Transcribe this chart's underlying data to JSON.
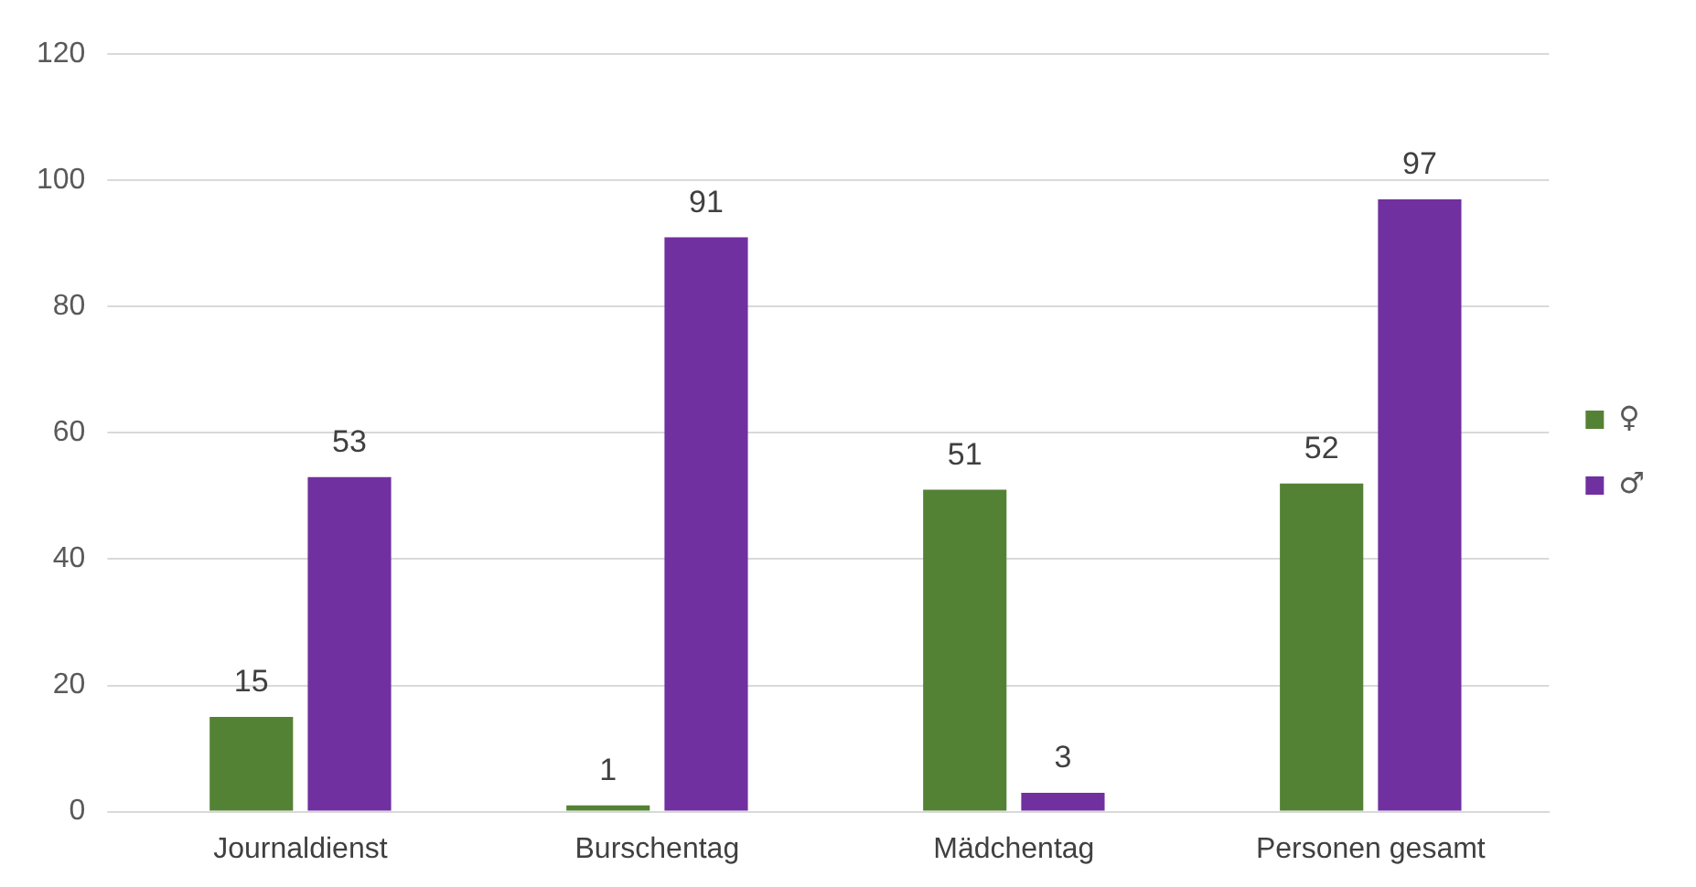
{
  "chart_data": {
    "type": "bar",
    "categories": [
      "Journaldienst",
      "Burschentag",
      "Mädchentag",
      "Personen gesamt"
    ],
    "series": [
      {
        "name": "♀",
        "color": "#548235",
        "values": [
          15,
          1,
          51,
          52
        ]
      },
      {
        "name": "♂",
        "color": "#7030a0",
        "values": [
          53,
          91,
          3,
          97
        ]
      }
    ],
    "ylim": [
      0,
      120
    ],
    "yticks": [
      0,
      20,
      40,
      60,
      80,
      100,
      120
    ],
    "grid": "y",
    "legend": "right",
    "data_labels": true
  }
}
